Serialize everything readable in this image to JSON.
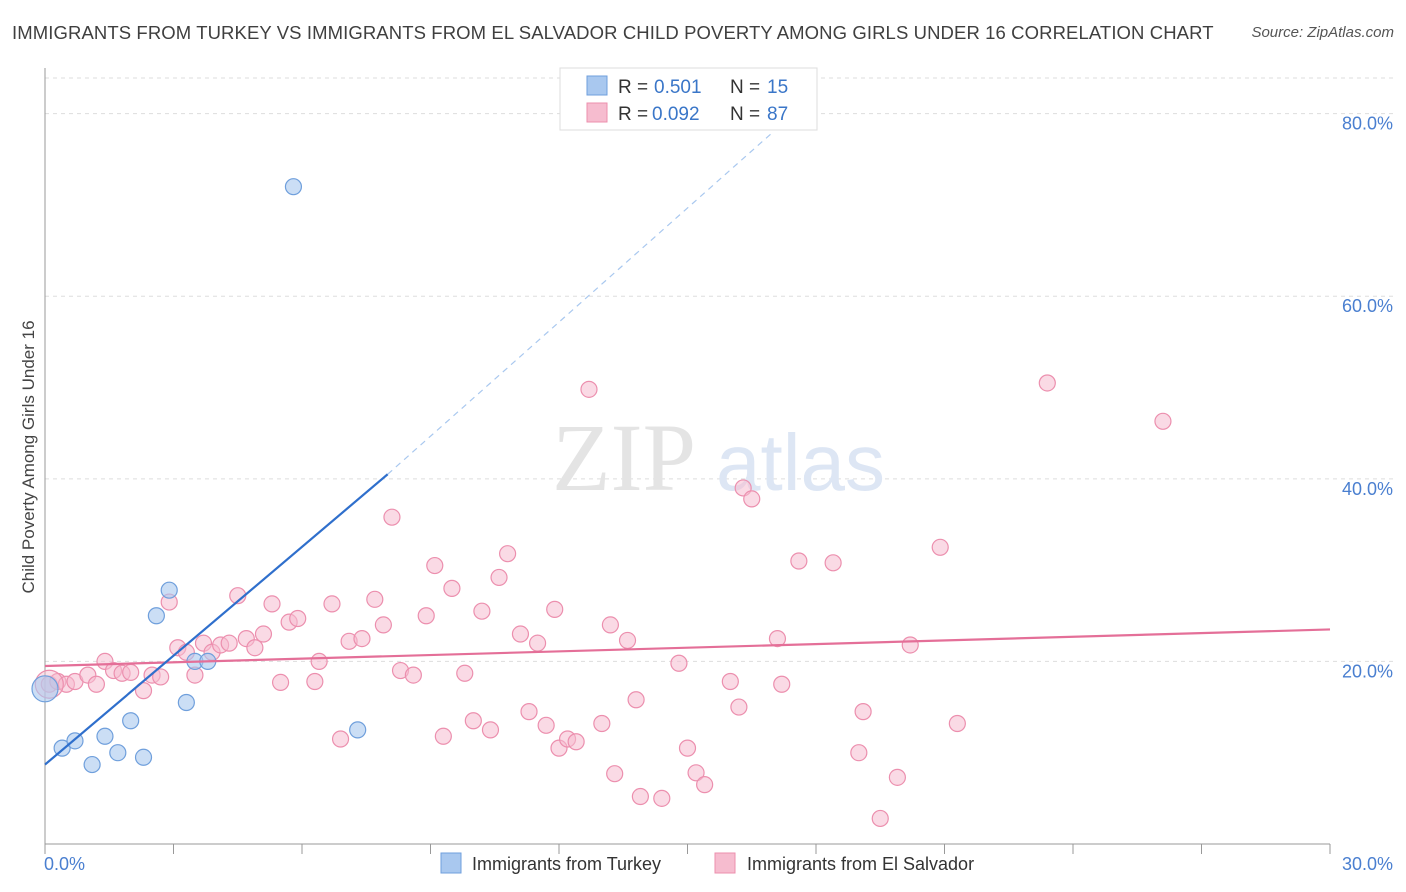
{
  "title": "IMMIGRANTS FROM TURKEY VS IMMIGRANTS FROM EL SALVADOR CHILD POVERTY AMONG GIRLS UNDER 16 CORRELATION CHART",
  "source": "Source: ZipAtlas.com",
  "watermark": {
    "zip": "ZIP",
    "atlas": "atlas"
  },
  "colors": {
    "turkey_fill": "#a9c8ef",
    "turkey_stroke": "#6f9fdc",
    "turkey_line": "#2f6fcc",
    "salvador_fill": "#f6bccf",
    "salvador_stroke": "#ec8fae",
    "salvador_line": "#e46f98",
    "tick_label": "#4a7fd0",
    "grid": "#dddddd"
  },
  "legend": {
    "r_label": "R =",
    "n_label": "N =",
    "turkey": {
      "r": "0.501",
      "n": "15"
    },
    "salvador": {
      "r": "0.092",
      "n": "87"
    }
  },
  "chart_data": {
    "type": "scatter",
    "title": "IMMIGRANTS FROM TURKEY VS IMMIGRANTS FROM EL SALVADOR CHILD POVERTY AMONG GIRLS UNDER 16 CORRELATION CHART",
    "xlabel": "",
    "ylabel": "Child Poverty Among Girls Under 16",
    "xlim": [
      0,
      30
    ],
    "ylim": [
      0,
      85
    ],
    "x_tick_labels": [
      "0.0%",
      "30.0%"
    ],
    "y_ticks": [
      20,
      40,
      60,
      80
    ],
    "y_tick_labels": [
      "20.0%",
      "40.0%",
      "60.0%",
      "80.0%"
    ],
    "grid": "horizontal dashed",
    "legend_position": "top-center",
    "series": [
      {
        "name": "Immigrants from Turkey",
        "points": [
          [
            0.0,
            17.0
          ],
          [
            0.4,
            10.5
          ],
          [
            0.7,
            11.3
          ],
          [
            1.1,
            8.7
          ],
          [
            1.4,
            11.8
          ],
          [
            1.7,
            10.0
          ],
          [
            2.0,
            13.5
          ],
          [
            2.3,
            9.5
          ],
          [
            2.6,
            25.0
          ],
          [
            2.9,
            27.8
          ],
          [
            3.3,
            15.5
          ],
          [
            3.5,
            20.0
          ],
          [
            3.8,
            20.0
          ],
          [
            5.8,
            72.0
          ],
          [
            7.3,
            12.5
          ]
        ],
        "trend": {
          "x": [
            0.0,
            8.0
          ],
          "y": [
            8.7,
            40.5
          ],
          "dashed_extension": {
            "x": [
              8.0,
              17.0
            ],
            "y": [
              40.5,
              78.0
            ]
          }
        }
      },
      {
        "name": "Immigrants from El Salvador",
        "points": [
          [
            0.1,
            17.5
          ],
          [
            0.3,
            17.8
          ],
          [
            0.5,
            17.5
          ],
          [
            0.7,
            17.8
          ],
          [
            1.0,
            18.5
          ],
          [
            1.2,
            17.5
          ],
          [
            1.4,
            20.0
          ],
          [
            1.6,
            19.0
          ],
          [
            1.8,
            18.7
          ],
          [
            2.0,
            18.8
          ],
          [
            2.3,
            16.8
          ],
          [
            2.5,
            18.5
          ],
          [
            2.7,
            18.3
          ],
          [
            2.9,
            26.5
          ],
          [
            3.1,
            21.5
          ],
          [
            3.3,
            21.0
          ],
          [
            3.5,
            18.5
          ],
          [
            3.7,
            22.0
          ],
          [
            3.9,
            21.0
          ],
          [
            4.1,
            21.8
          ],
          [
            4.3,
            22.0
          ],
          [
            4.5,
            27.2
          ],
          [
            4.7,
            22.5
          ],
          [
            4.9,
            21.5
          ],
          [
            5.1,
            23.0
          ],
          [
            5.3,
            26.3
          ],
          [
            5.5,
            17.7
          ],
          [
            5.7,
            24.3
          ],
          [
            5.9,
            24.7
          ],
          [
            6.3,
            17.8
          ],
          [
            6.4,
            20.0
          ],
          [
            6.7,
            26.3
          ],
          [
            6.9,
            11.5
          ],
          [
            7.1,
            22.2
          ],
          [
            7.4,
            22.5
          ],
          [
            7.7,
            26.8
          ],
          [
            7.9,
            24.0
          ],
          [
            8.1,
            35.8
          ],
          [
            8.3,
            19.0
          ],
          [
            8.6,
            18.5
          ],
          [
            8.9,
            25.0
          ],
          [
            9.1,
            30.5
          ],
          [
            9.3,
            11.8
          ],
          [
            9.5,
            28.0
          ],
          [
            9.8,
            18.7
          ],
          [
            10.0,
            13.5
          ],
          [
            10.2,
            25.5
          ],
          [
            10.4,
            12.5
          ],
          [
            10.6,
            29.2
          ],
          [
            10.8,
            31.8
          ],
          [
            11.1,
            23.0
          ],
          [
            11.3,
            14.5
          ],
          [
            11.5,
            22.0
          ],
          [
            11.7,
            13.0
          ],
          [
            11.9,
            25.7
          ],
          [
            12.0,
            10.5
          ],
          [
            12.2,
            11.5
          ],
          [
            12.4,
            11.2
          ],
          [
            12.7,
            49.8
          ],
          [
            13.0,
            13.2
          ],
          [
            13.2,
            24.0
          ],
          [
            13.3,
            7.7
          ],
          [
            13.6,
            22.3
          ],
          [
            13.8,
            15.8
          ],
          [
            13.9,
            5.2
          ],
          [
            14.4,
            5.0
          ],
          [
            14.8,
            19.8
          ],
          [
            15.0,
            10.5
          ],
          [
            15.2,
            7.8
          ],
          [
            15.4,
            6.5
          ],
          [
            16.0,
            17.8
          ],
          [
            16.2,
            15.0
          ],
          [
            16.3,
            39.0
          ],
          [
            16.5,
            37.8
          ],
          [
            17.1,
            22.5
          ],
          [
            17.2,
            17.5
          ],
          [
            17.6,
            31.0
          ],
          [
            18.4,
            30.8
          ],
          [
            19.0,
            10.0
          ],
          [
            19.1,
            14.5
          ],
          [
            19.5,
            2.8
          ],
          [
            19.9,
            7.3
          ],
          [
            20.2,
            21.8
          ],
          [
            20.9,
            32.5
          ],
          [
            21.3,
            13.2
          ],
          [
            23.4,
            50.5
          ],
          [
            26.1,
            46.3
          ]
        ],
        "trend": {
          "x": [
            0.0,
            30.0
          ],
          "y": [
            19.5,
            23.5
          ]
        }
      }
    ]
  },
  "bottom_legend": {
    "turkey_label": "Immigrants from Turkey",
    "salvador_label": "Immigrants from El Salvador"
  }
}
